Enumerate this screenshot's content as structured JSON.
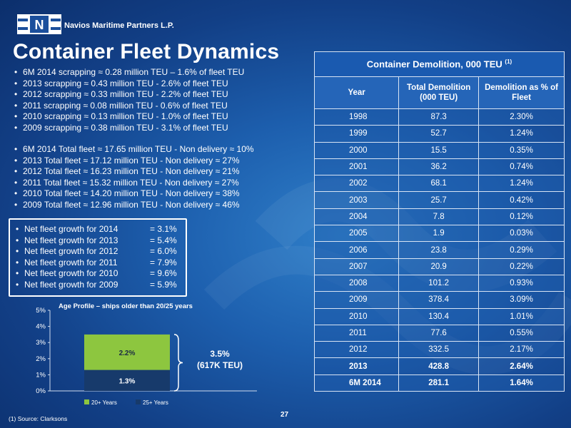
{
  "header": {
    "logo_letter": "N",
    "company": "Navios Maritime Partners L.P.",
    "title": "Container Fleet Dynamics"
  },
  "scrapping": [
    "6M 2014 scrapping ≈ 0.28 million TEU – 1.6% of fleet TEU",
    "2013 scrapping ≈ 0.43 million TEU - 2.6% of fleet TEU",
    "2012 scrapping ≈ 0.33 million TEU - 2.2% of fleet TEU",
    "2011 scrapping ≈ 0.08 million TEU - 0.6% of fleet TEU",
    "2010 scrapping ≈ 0.13 million TEU - 1.0% of fleet TEU",
    "2009 scrapping ≈ 0.38 million TEU - 3.1% of fleet TEU"
  ],
  "total_fleet": [
    "6M 2014 Total fleet  ≈ 17.65 million TEU - Non delivery ≈ 10%",
    "2013 Total fleet ≈ 17.12 million TEU - Non delivery ≈ 27%",
    "2012 Total fleet ≈ 16.23 million TEU - Non delivery ≈ 21%",
    "2011 Total fleet ≈ 15.32 million TEU - Non delivery ≈ 27%",
    "2010 Total fleet ≈ 14.20 million TEU - Non delivery ≈ 38%",
    "2009 Total fleet ≈ 12.96 million TEU - Non delivery ≈ 46%"
  ],
  "growth": [
    {
      "label": "Net fleet growth for 2014",
      "value": "=  3.1%"
    },
    {
      "label": "Net fleet growth for 2013",
      "value": "=  5.4%"
    },
    {
      "label": "Net fleet growth for 2012",
      "value": "=  6.0%"
    },
    {
      "label": "Net fleet growth for 2011",
      "value": "=  7.9%"
    },
    {
      "label": "Net fleet growth for 2010",
      "value": "=  9.6%"
    },
    {
      "label": "Net fleet growth for 2009",
      "value": "=  5.9%"
    }
  ],
  "chart_data": {
    "type": "bar",
    "stacked": true,
    "title": "Age Profile – ships older than 20/25 years",
    "categories": [
      ""
    ],
    "series": [
      {
        "name": "25+ Years",
        "values": [
          1.3
        ],
        "label": "1.3%",
        "color": "#173a6b"
      },
      {
        "name": "20+ Years",
        "values": [
          2.2
        ],
        "label": "2.2%",
        "color": "#8dc63f"
      }
    ],
    "ylim": [
      0,
      5
    ],
    "yticks": [
      "0%",
      "1%",
      "2%",
      "3%",
      "4%",
      "5%"
    ],
    "legend": "bottom",
    "annotation_line1": "3.5%",
    "annotation_line2": "(617K TEU)"
  },
  "table": {
    "caption": "Container Demolition, 000 TEU",
    "caption_sup": "(1)",
    "headers": [
      "Year",
      "Total Demolition (000 TEU)",
      "Demolition as % of Fleet"
    ],
    "rows": [
      [
        "1998",
        "87.3",
        "2.30%"
      ],
      [
        "1999",
        "52.7",
        "1.24%"
      ],
      [
        "2000",
        "15.5",
        "0.35%"
      ],
      [
        "2001",
        "36.2",
        "0.74%"
      ],
      [
        "2002",
        "68.1",
        "1.24%"
      ],
      [
        "2003",
        "25.7",
        "0.42%"
      ],
      [
        "2004",
        "7.8",
        "0.12%"
      ],
      [
        "2005",
        "1.9",
        "0.03%"
      ],
      [
        "2006",
        "23.8",
        "0.29%"
      ],
      [
        "2007",
        "20.9",
        "0.22%"
      ],
      [
        "2008",
        "101.2",
        "0.93%"
      ],
      [
        "2009",
        "378.4",
        "3.09%"
      ],
      [
        "2010",
        "130.4",
        "1.01%"
      ],
      [
        "2011",
        "77.6",
        "0.55%"
      ],
      [
        "2012",
        "332.5",
        "2.17%"
      ],
      [
        "2013",
        "428.8",
        "2.64%"
      ],
      [
        "6M 2014",
        "281.1",
        "1.64%"
      ]
    ]
  },
  "footnote": "(1)    Source: Clarksons",
  "page_number": "27"
}
